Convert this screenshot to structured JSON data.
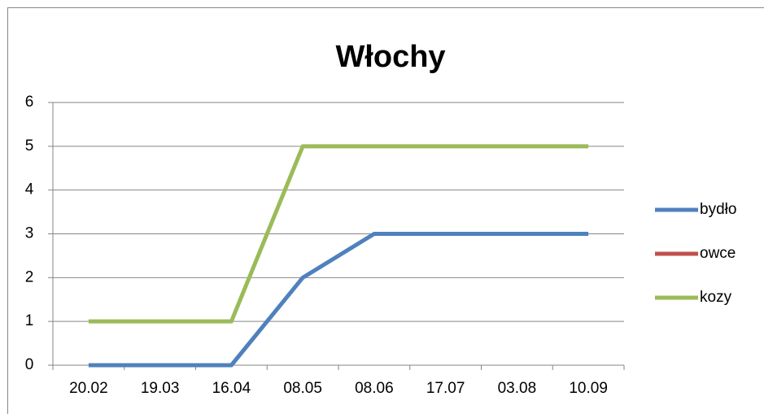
{
  "chart_data": {
    "type": "line",
    "title": "Włochy",
    "categories": [
      "20.02",
      "19.03",
      "16.04",
      "08.05",
      "08.06",
      "17.07",
      "03.08",
      "10.09"
    ],
    "series": [
      {
        "name": "bydło",
        "color": "#4f81bd",
        "values": [
          0,
          0,
          0,
          2,
          3,
          3,
          3,
          3
        ]
      },
      {
        "name": "owce",
        "color": "#c0504d",
        "values": [
          null,
          null,
          null,
          null,
          null,
          null,
          null,
          null
        ]
      },
      {
        "name": "kozy",
        "color": "#9bbb59",
        "values": [
          1,
          1,
          1,
          5,
          5,
          5,
          5,
          5
        ]
      }
    ],
    "ylim": [
      0,
      6
    ],
    "yticks": [
      0,
      1,
      2,
      3,
      4,
      5,
      6
    ],
    "grid": true,
    "legend": "right"
  }
}
